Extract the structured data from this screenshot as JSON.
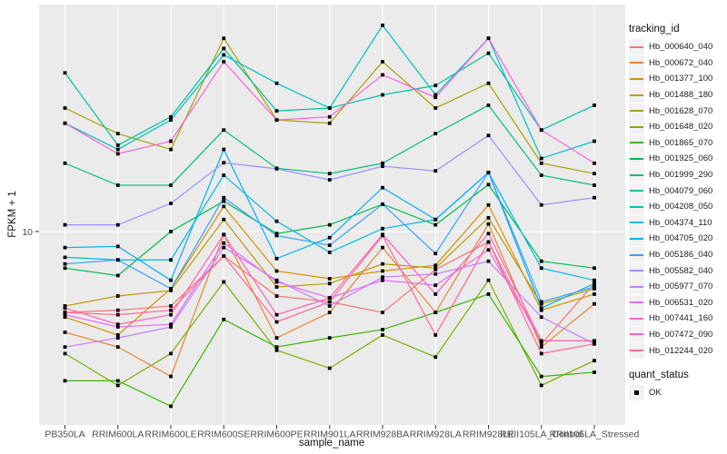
{
  "figure": {
    "background": "#FFFFFF",
    "panel_background": "#EBEBEB",
    "grid_color": "#FFFFFF",
    "tick_mark_color": "#333333",
    "tick_label_color": "#4D4D4D",
    "point_color": "#000000"
  },
  "chart_data": {
    "type": "line",
    "title": "",
    "xlabel": "sample_name",
    "ylabel": "FPKM + 1",
    "y_scale": "log10",
    "ylim": [
      1.5,
      100
    ],
    "y_ticks": [
      {
        "value": 10,
        "label": "10"
      }
    ],
    "grid": true,
    "legend_position": "right",
    "point_shape": "filled-square",
    "categories": [
      "PB350LA",
      "RRIM600LA",
      "RRIM600LE",
      "RRIM600SE",
      "RRIM600PE",
      "RRIM901LA",
      "RRIM928BA",
      "RRIM928LA",
      "RRIM928LE",
      "RRII105LA_Control",
      "RRII105LA_Stressed"
    ],
    "series": [
      {
        "name": "Hb_000640_040",
        "color": "#F8766D",
        "values": [
          4.4,
          4.5,
          4.7,
          7.8,
          5.2,
          4.9,
          4.4,
          6.8,
          9.0,
          3.2,
          5.9
        ]
      },
      {
        "name": "Hb_000672_040",
        "color": "#EA8331",
        "values": [
          3.6,
          3.1,
          2.3,
          9.7,
          3.4,
          4.4,
          8.5,
          4.4,
          10.8,
          3.1,
          4.8
        ]
      },
      {
        "name": "Hb_001377_100",
        "color": "#D89000",
        "values": [
          4.2,
          3.5,
          5.6,
          12.9,
          6.7,
          6.2,
          6.7,
          7.1,
          13.1,
          4.5,
          5.3
        ]
      },
      {
        "name": "Hb_001488_180",
        "color": "#C09B00",
        "values": [
          4.7,
          5.2,
          5.5,
          11.3,
          5.7,
          5.9,
          7.2,
          6.9,
          11.5,
          4.8,
          5.6
        ]
      },
      {
        "name": "Hb_001628_070",
        "color": "#A3A500",
        "values": [
          35,
          27,
          23,
          71,
          31,
          30,
          56,
          35,
          45,
          20,
          18
        ]
      },
      {
        "name": "Hb_001648_020",
        "color": "#7CAE00",
        "values": [
          2.9,
          2.1,
          2.9,
          6.0,
          3.0,
          2.5,
          3.5,
          2.8,
          6.1,
          2.1,
          2.7
        ]
      },
      {
        "name": "Hb_001865_070",
        "color": "#39B600",
        "values": [
          2.2,
          2.2,
          1.7,
          4.1,
          3.1,
          3.4,
          3.7,
          4.4,
          5.3,
          2.3,
          2.4
        ]
      },
      {
        "name": "Hb_001925_060",
        "color": "#00BB4E",
        "values": [
          6.9,
          6.4,
          10,
          13.6,
          9.8,
          10.7,
          13.2,
          10.7,
          16.1,
          7.4,
          6.9
        ]
      },
      {
        "name": "Hb_001999_290",
        "color": "#00BF7D",
        "values": [
          20,
          16,
          16,
          28,
          19,
          18,
          20,
          27,
          36,
          17.7,
          16
        ]
      },
      {
        "name": "Hb_004079_060",
        "color": "#00C1A3",
        "values": [
          50,
          24,
          32,
          64,
          34,
          35,
          40,
          44,
          61,
          28,
          36
        ]
      },
      {
        "name": "Hb_004208_050",
        "color": "#00BFC4",
        "values": [
          30,
          23,
          31,
          60,
          45,
          35,
          81,
          40,
          71,
          21,
          25
        ]
      },
      {
        "name": "Hb_004374_110",
        "color": "#00BAE0",
        "values": [
          7.7,
          7.5,
          7.5,
          17.7,
          11.1,
          8.1,
          10.3,
          11.3,
          18.2,
          6.9,
          6.1
        ]
      },
      {
        "name": "Hb_004705_020",
        "color": "#00B0F6",
        "values": [
          8.5,
          8.6,
          6.1,
          23,
          7.6,
          9.4,
          15.6,
          11.3,
          18.2,
          4.6,
          5.9
        ]
      },
      {
        "name": "Hb_005186_040",
        "color": "#35A2FF",
        "values": [
          7.2,
          7.5,
          5.6,
          14.1,
          9.6,
          8.7,
          13.2,
          8.0,
          18.2,
          4.9,
          5.7
        ]
      },
      {
        "name": "Hb_005582_040",
        "color": "#9590FF",
        "values": [
          10.7,
          10.7,
          13.3,
          20.1,
          18.9,
          16.9,
          19.4,
          18.5,
          26.5,
          13.1,
          14.1
        ]
      },
      {
        "name": "Hb_005977_070",
        "color": "#C77CFF",
        "values": [
          3.1,
          3.4,
          3.8,
          8.5,
          6.1,
          4.7,
          6.3,
          6.5,
          7.4,
          4.2,
          3.2
        ]
      },
      {
        "name": "Hb_006531_020",
        "color": "#E76BF3",
        "values": [
          4.3,
          3.8,
          3.9,
          8.9,
          6.0,
          5.1,
          6.1,
          5.8,
          8.3,
          3.3,
          3.3
        ]
      },
      {
        "name": "Hb_007441_160",
        "color": "#FA62DB",
        "values": [
          30,
          22,
          25,
          56,
          31,
          32,
          49,
          39,
          71,
          28,
          20
        ]
      },
      {
        "name": "Hb_007472_090",
        "color": "#FF62BC",
        "values": [
          4.6,
          3.9,
          4.3,
          9.7,
          4.3,
          5.1,
          9.7,
          5.3,
          9.8,
          3.3,
          3.3
        ]
      },
      {
        "name": "Hb_012244_020",
        "color": "#FF6A98",
        "values": [
          4.4,
          4.3,
          4.5,
          7.8,
          4.0,
          4.9,
          9.6,
          3.5,
          9.0,
          2.9,
          3.2
        ]
      }
    ],
    "legend": {
      "color_title": "tracking_id",
      "shape_title": "quant_status",
      "shape_items": [
        {
          "label": "OK",
          "color": "#000000"
        }
      ]
    }
  }
}
